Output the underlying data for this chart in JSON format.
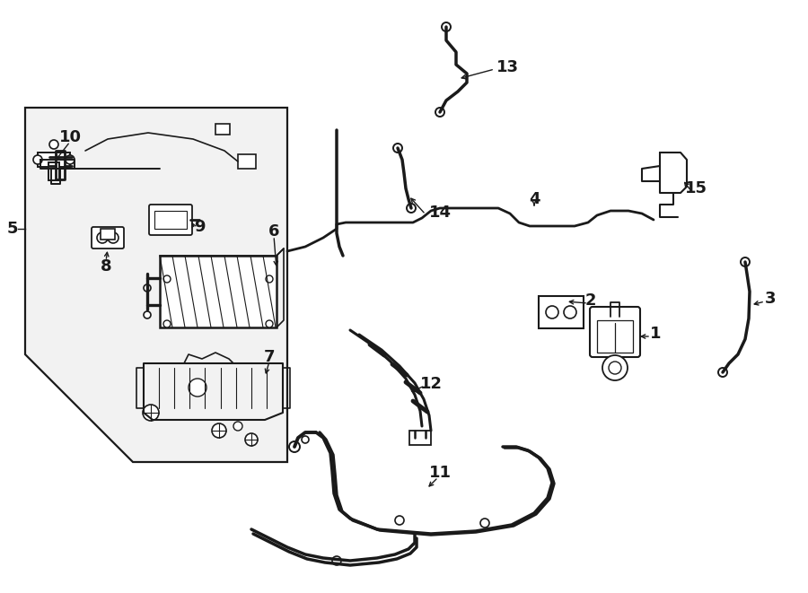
{
  "bg_color": "#ffffff",
  "line_color": "#1a1a1a",
  "lw_thick": 2.2,
  "lw_med": 1.6,
  "lw_thin": 1.0,
  "lw_pipe": 2.8,
  "font_size": 13,
  "box_fill": "#f0f0f0"
}
